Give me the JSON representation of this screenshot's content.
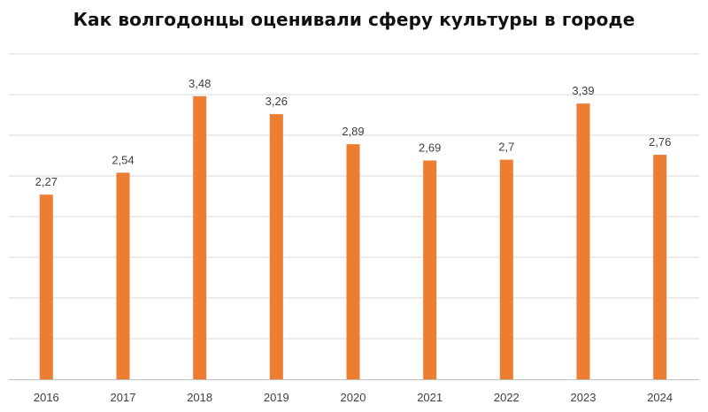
{
  "chart_data": {
    "type": "bar",
    "title": "Как волгодонцы оценивали сферу культуры в городе",
    "categories": [
      "2016",
      "2017",
      "2018",
      "2019",
      "2020",
      "2021",
      "2022",
      "2023",
      "2024"
    ],
    "values": [
      2.27,
      2.54,
      3.48,
      3.26,
      2.89,
      2.69,
      2.7,
      3.39,
      2.76
    ],
    "value_labels": [
      "2,27",
      "2,54",
      "3,48",
      "3,26",
      "2,89",
      "2,69",
      "2,7",
      "3,39",
      "2,76"
    ],
    "xlabel": "",
    "ylabel": "",
    "ylim": [
      0,
      4
    ],
    "y_axis_labels_shown": false,
    "grid": true,
    "legend": "none",
    "bar_color": "#ED7D31"
  }
}
